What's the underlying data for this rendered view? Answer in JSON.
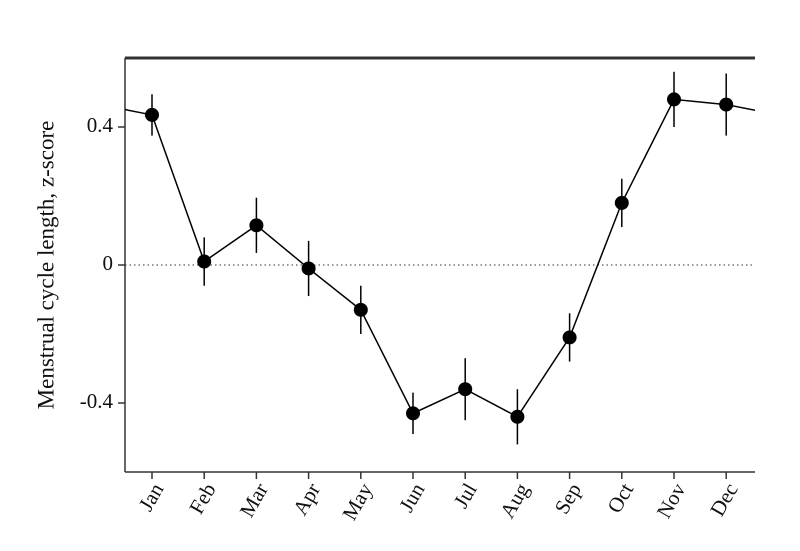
{
  "chart_data": {
    "type": "line",
    "y_label": "Menstrual cycle length, z-score",
    "categories": [
      "Jan",
      "Feb",
      "Mar",
      "Apr",
      "May",
      "Jun",
      "Jul",
      "Aug",
      "Sep",
      "Oct",
      "Nov",
      "Dec"
    ],
    "values": [
      0.435,
      0.01,
      0.115,
      -0.01,
      -0.13,
      -0.43,
      -0.36,
      -0.44,
      -0.21,
      0.18,
      0.48,
      0.465
    ],
    "errors": [
      0.06,
      0.07,
      0.08,
      0.08,
      0.07,
      0.06,
      0.09,
      0.08,
      0.07,
      0.07,
      0.08,
      0.09
    ],
    "color": "#000000",
    "ylim": [
      -0.6,
      0.6
    ],
    "yticks": [
      -0.4,
      0,
      0.4
    ],
    "reference_line": 0
  }
}
